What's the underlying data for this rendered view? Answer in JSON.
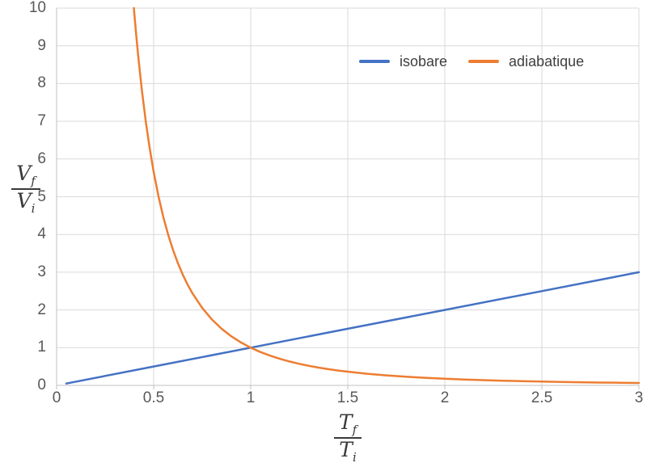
{
  "page": {
    "background": "#FFFFFF"
  },
  "legend": {
    "items": [
      {
        "label": "isobare",
        "color": "#4472C4"
      },
      {
        "label": "adiabatique",
        "color": "#ED7D31"
      }
    ]
  },
  "axis_titles": {
    "y": {
      "num_base": "V",
      "num_sub": "f",
      "den_base": "V",
      "den_sub": "i"
    },
    "x": {
      "num_base": "T",
      "num_sub": "f",
      "den_base": "T",
      "den_sub": "i"
    }
  },
  "style": {
    "grid_color": "#DADADA",
    "axis_color": "#C2C2C2",
    "tick_label_color": "#595959",
    "legend_text_color": "#3F3F3F",
    "axis_title_color": "#3A3A3A",
    "series_stroke_width": 2.5
  },
  "chart_data": {
    "type": "line",
    "title": "",
    "xlabel": "T_f / T_i",
    "ylabel": "V_f / V_i",
    "xlim": [
      0,
      3
    ],
    "ylim": [
      0,
      10
    ],
    "grid": true,
    "legend_position": "top-center-inside",
    "xticks": [
      0,
      0.5,
      1,
      1.5,
      2,
      2.5,
      3
    ],
    "xtick_labels": [
      "0",
      "0.5",
      "1",
      "1.5",
      "2",
      "2.5",
      "3"
    ],
    "yticks": [
      0,
      1,
      2,
      3,
      4,
      5,
      6,
      7,
      8,
      9,
      10
    ],
    "ytick_labels": [
      "0",
      "1",
      "2",
      "3",
      "4",
      "5",
      "6",
      "7",
      "8",
      "9",
      "10"
    ],
    "series": [
      {
        "name": "isobare",
        "color": "#4472C4",
        "formula": "y = x",
        "points": [
          [
            0.05,
            0.05
          ],
          [
            0.5,
            0.5
          ],
          [
            1,
            1
          ],
          [
            1.5,
            1.5
          ],
          [
            2,
            2
          ],
          [
            2.5,
            2.5
          ],
          [
            3,
            3
          ]
        ]
      },
      {
        "name": "adiabatique",
        "color": "#ED7D31",
        "formula": "y = x^(-5/2)  (adiabat, gamma = 7/5), intersects isobare at (1,1)",
        "points": [
          [
            0.398,
            10
          ],
          [
            0.41,
            9.29
          ],
          [
            0.42,
            8.75
          ],
          [
            0.44,
            7.79
          ],
          [
            0.46,
            6.97
          ],
          [
            0.48,
            6.27
          ],
          [
            0.5,
            5.657
          ],
          [
            0.525,
            5.007
          ],
          [
            0.55,
            4.457
          ],
          [
            0.575,
            3.989
          ],
          [
            0.6,
            3.586
          ],
          [
            0.625,
            3.238
          ],
          [
            0.65,
            2.936
          ],
          [
            0.675,
            2.671
          ],
          [
            0.7,
            2.439
          ],
          [
            0.75,
            2.053
          ],
          [
            0.8,
            1.747
          ],
          [
            0.85,
            1.501
          ],
          [
            0.9,
            1.301
          ],
          [
            0.95,
            1.137
          ],
          [
            1,
            1
          ],
          [
            1.05,
            0.885
          ],
          [
            1.1,
            0.788
          ],
          [
            1.15,
            0.705
          ],
          [
            1.2,
            0.634
          ],
          [
            1.25,
            0.572
          ],
          [
            1.3,
            0.519
          ],
          [
            1.35,
            0.472
          ],
          [
            1.4,
            0.431
          ],
          [
            1.45,
            0.395
          ],
          [
            1.5,
            0.363
          ],
          [
            1.6,
            0.309
          ],
          [
            1.7,
            0.265
          ],
          [
            1.8,
            0.23
          ],
          [
            1.9,
            0.201
          ],
          [
            2,
            0.177
          ],
          [
            2.1,
            0.156
          ],
          [
            2.2,
            0.139
          ],
          [
            2.3,
            0.125
          ],
          [
            2.4,
            0.112
          ],
          [
            2.5,
            0.101
          ],
          [
            2.6,
            0.092
          ],
          [
            2.7,
            0.084
          ],
          [
            2.8,
            0.076
          ],
          [
            2.9,
            0.07
          ],
          [
            3,
            0.064
          ]
        ]
      }
    ]
  }
}
